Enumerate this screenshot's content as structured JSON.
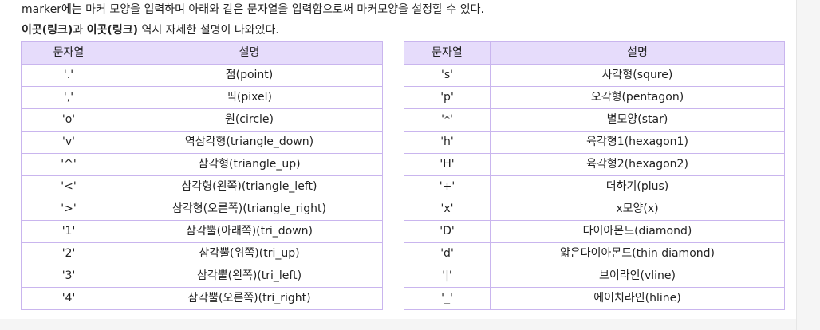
{
  "intro": {
    "line1": "marker에는 마커 모양을 입력하며 아래와 같은 문자열을 입력함으로써 마커모양을 설정할 수 있다.",
    "link1": "이곳(링크)",
    "connector": "과 ",
    "link2": "이곳(링크)",
    "rest": " 역시 자세한 설명이 나와있다."
  },
  "table_left": {
    "headers": [
      "문자열",
      "설명"
    ],
    "rows": [
      [
        "'.'",
        "점(point)"
      ],
      [
        "','",
        "픽(pixel)"
      ],
      [
        "'o'",
        "원(circle)"
      ],
      [
        "'v'",
        "역삼각형(triangle_down)"
      ],
      [
        "'^'",
        "삼각형(triangle_up)"
      ],
      [
        "'<'",
        "삼각형(왼쪽)(triangle_left)"
      ],
      [
        "'>'",
        "삼각형(오른쪽)(triangle_right)"
      ],
      [
        "'1'",
        "삼각뿔(아래쪽)(tri_down)"
      ],
      [
        "'2'",
        "삼각뿔(위쪽)(tri_up)"
      ],
      [
        "'3'",
        "삼각뿔(왼쪽)(tri_left)"
      ],
      [
        "'4'",
        "삼각뿔(오른쪽)(tri_right)"
      ]
    ]
  },
  "table_right": {
    "headers": [
      "문자열",
      "설명"
    ],
    "rows": [
      [
        "'s'",
        "사각형(squre)"
      ],
      [
        "'p'",
        "오각형(pentagon)"
      ],
      [
        "'*'",
        "별모양(star)"
      ],
      [
        "'h'",
        "육각형1(hexagon1)"
      ],
      [
        "'H'",
        "육각형2(hexagon2)"
      ],
      [
        "'+'",
        "더하기(plus)"
      ],
      [
        "'x'",
        "x모양(x)"
      ],
      [
        "'D'",
        "다이아몬드(diamond)"
      ],
      [
        "'d'",
        "얇은다이아몬드(thin diamond)"
      ],
      [
        "'|'",
        "브이라인(vline)"
      ],
      [
        "'_'",
        "에이치라인(hline)"
      ]
    ]
  },
  "colors": {
    "header_bg": "#e6dcfb",
    "border": "#c9b5ee"
  }
}
